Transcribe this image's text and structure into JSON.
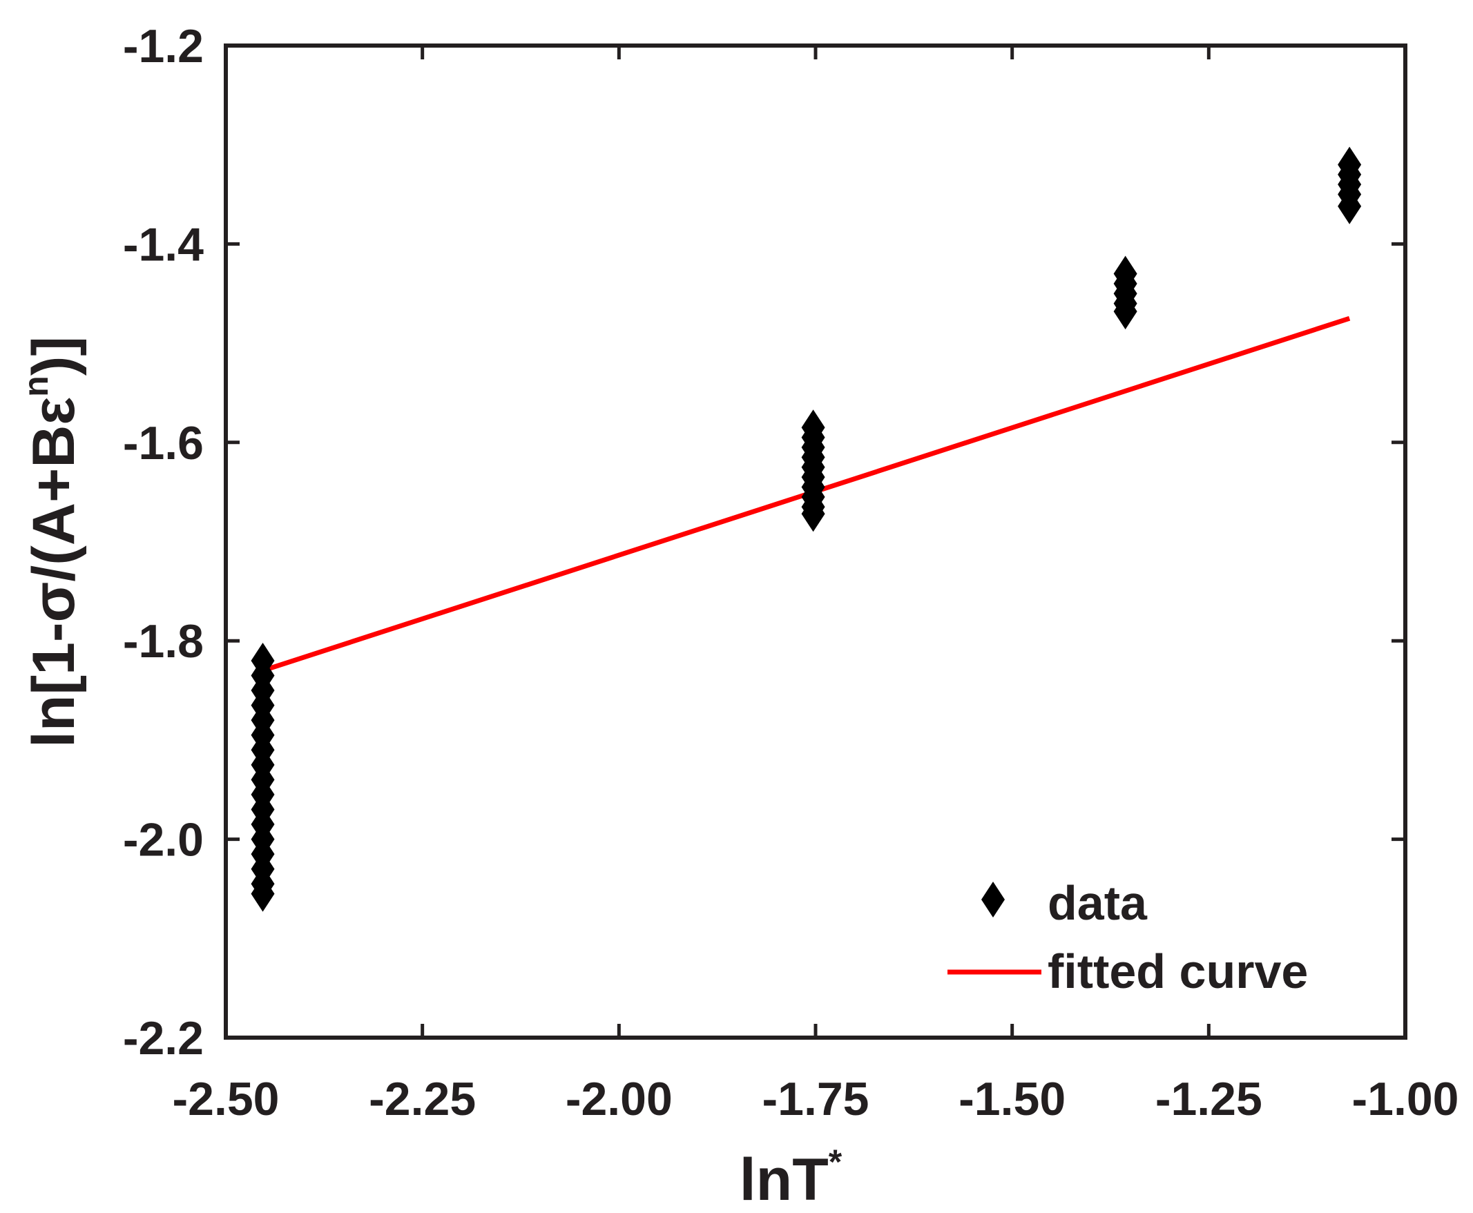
{
  "chart_data": {
    "type": "scatter",
    "xlabel": "lnT",
    "xlabel_superscript": "*",
    "ylabel_prefix": "ln[1-σ/(A+Bε",
    "ylabel_superscript": "n",
    "ylabel_suffix": ")]",
    "xlim": [
      -2.5,
      -1.0
    ],
    "ylim": [
      -2.2,
      -1.2
    ],
    "xticks": [
      -2.5,
      -2.25,
      -2.0,
      -1.75,
      -1.5,
      -1.25,
      -1.0
    ],
    "xtick_labels": [
      "-2.50",
      "-2.25",
      "-2.00",
      "-1.75",
      "-1.50",
      "-1.25",
      "-1.00"
    ],
    "yticks": [
      -2.2,
      -2.0,
      -1.8,
      -1.6,
      -1.4,
      -1.2
    ],
    "ytick_labels": [
      "-2.2",
      "-2.0",
      "-1.8",
      "-1.6",
      "-1.4",
      "-1.2"
    ],
    "grid": false,
    "legend_position": "bottom-right",
    "series": [
      {
        "name": "data",
        "kind": "scatter",
        "marker": "diamond",
        "color": "#000000",
        "points": [
          [
            -2.453,
            -1.82
          ],
          [
            -2.453,
            -1.835
          ],
          [
            -2.453,
            -1.85
          ],
          [
            -2.453,
            -1.865
          ],
          [
            -2.453,
            -1.88
          ],
          [
            -2.453,
            -1.895
          ],
          [
            -2.453,
            -1.91
          ],
          [
            -2.453,
            -1.925
          ],
          [
            -2.453,
            -1.94
          ],
          [
            -2.453,
            -1.955
          ],
          [
            -2.453,
            -1.97
          ],
          [
            -2.453,
            -1.985
          ],
          [
            -2.453,
            -2.0
          ],
          [
            -2.453,
            -2.015
          ],
          [
            -2.453,
            -2.03
          ],
          [
            -2.453,
            -2.045
          ],
          [
            -2.453,
            -2.055
          ],
          [
            -1.753,
            -1.585
          ],
          [
            -1.753,
            -1.595
          ],
          [
            -1.753,
            -1.605
          ],
          [
            -1.753,
            -1.615
          ],
          [
            -1.753,
            -1.625
          ],
          [
            -1.753,
            -1.635
          ],
          [
            -1.753,
            -1.645
          ],
          [
            -1.753,
            -1.655
          ],
          [
            -1.753,
            -1.665
          ],
          [
            -1.753,
            -1.672
          ],
          [
            -1.356,
            -1.43
          ],
          [
            -1.356,
            -1.44
          ],
          [
            -1.356,
            -1.45
          ],
          [
            -1.356,
            -1.46
          ],
          [
            -1.356,
            -1.468
          ],
          [
            -1.071,
            -1.32
          ],
          [
            -1.071,
            -1.33
          ],
          [
            -1.071,
            -1.34
          ],
          [
            -1.071,
            -1.35
          ],
          [
            -1.071,
            -1.362
          ]
        ]
      },
      {
        "name": "fitted curve",
        "kind": "line",
        "color": "#ff0000",
        "points": [
          [
            -2.453,
            -1.83
          ],
          [
            -1.071,
            -1.475
          ]
        ]
      }
    ]
  }
}
